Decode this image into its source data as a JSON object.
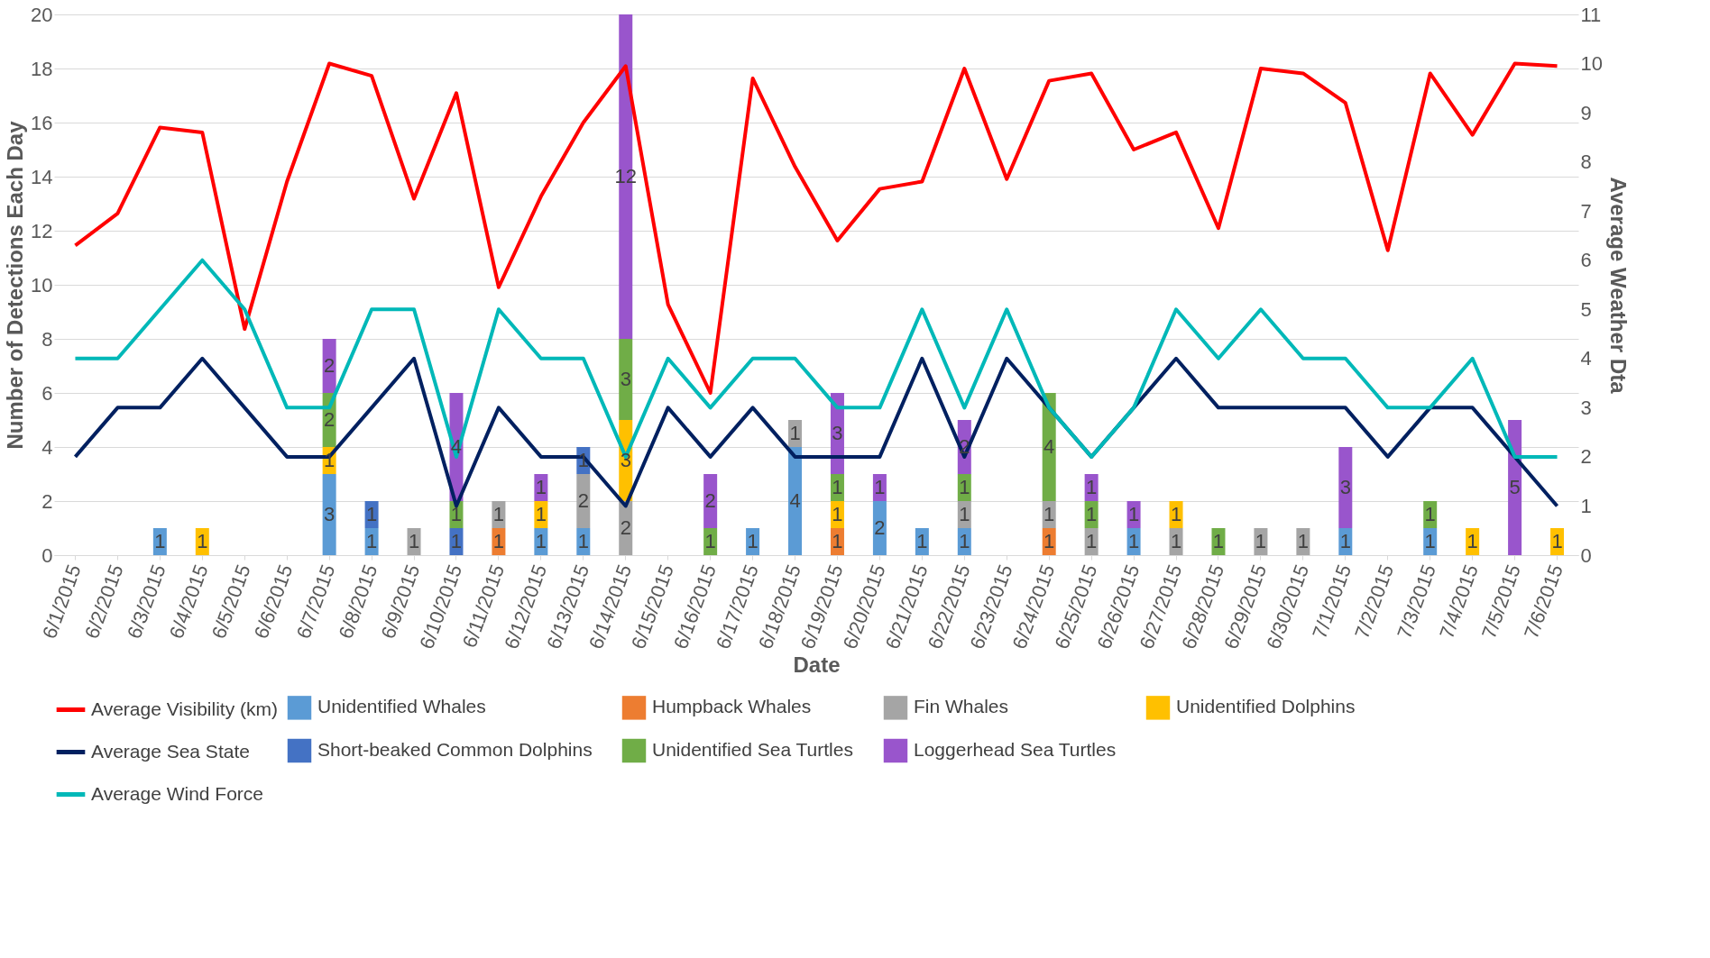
{
  "chart_data": {
    "type": "bar",
    "stacked": true,
    "grid": "y",
    "legend": "bottom",
    "xlabel": "Date",
    "ylabel": "Number of Detections Each Day",
    "y2label": "Average Weather Dta",
    "categories": [
      "6/1/2015",
      "6/2/2015",
      "6/3/2015",
      "6/4/2015",
      "6/5/2015",
      "6/6/2015",
      "6/7/2015",
      "6/8/2015",
      "6/9/2015",
      "6/10/2015",
      "6/11/2015",
      "6/12/2015",
      "6/13/2015",
      "6/14/2015",
      "6/15/2015",
      "6/16/2015",
      "6/17/2015",
      "6/18/2015",
      "6/19/2015",
      "6/20/2015",
      "6/21/2015",
      "6/22/2015",
      "6/23/2015",
      "6/24/2015",
      "6/25/2015",
      "6/26/2015",
      "6/27/2015",
      "6/28/2015",
      "6/29/2015",
      "6/30/2015",
      "7/1/2015",
      "7/2/2015",
      "7/3/2015",
      "7/4/2015",
      "7/5/2015",
      "7/6/2015"
    ],
    "ylim": [
      0,
      20
    ],
    "yticks": [
      0,
      2,
      4,
      6,
      8,
      10,
      12,
      14,
      16,
      18,
      20
    ],
    "y2lim": [
      0,
      11
    ],
    "y2ticks": [
      0,
      1,
      2,
      3,
      4,
      5,
      6,
      7,
      8,
      9,
      10,
      11
    ],
    "series": [
      {
        "name": "Unidentified Whales",
        "color": "#5b9bd5",
        "values": [
          null,
          null,
          1,
          null,
          null,
          null,
          3,
          1,
          null,
          null,
          null,
          1,
          1,
          null,
          null,
          null,
          1,
          4,
          null,
          2,
          1,
          1,
          null,
          null,
          null,
          1,
          null,
          null,
          null,
          null,
          1,
          null,
          1,
          null,
          null,
          null
        ],
        "value_labels": [
          null,
          null,
          "1",
          null,
          null,
          null,
          "3",
          "1",
          null,
          null,
          null,
          "1",
          "1",
          null,
          null,
          null,
          "1",
          "4",
          null,
          "2",
          "1",
          "1",
          null,
          null,
          null,
          "1",
          null,
          null,
          null,
          null,
          "1",
          null,
          "1",
          null,
          null,
          null
        ]
      },
      {
        "name": "Humpback Whales",
        "color": "#ed7d31",
        "values": [
          null,
          null,
          null,
          null,
          null,
          null,
          null,
          null,
          null,
          null,
          1,
          null,
          null,
          null,
          null,
          null,
          null,
          null,
          1,
          null,
          null,
          null,
          null,
          1,
          null,
          null,
          null,
          null,
          null,
          null,
          null,
          null,
          null,
          null,
          null,
          null
        ],
        "value_labels": [
          null,
          null,
          null,
          null,
          null,
          null,
          null,
          null,
          null,
          null,
          "1",
          null,
          null,
          null,
          null,
          null,
          null,
          null,
          "1",
          null,
          null,
          null,
          null,
          "1",
          null,
          null,
          null,
          null,
          null,
          null,
          null,
          null,
          null,
          null,
          null,
          null
        ]
      },
      {
        "name": "Fin Whales",
        "color": "#a5a5a5",
        "values": [
          null,
          null,
          null,
          null,
          null,
          null,
          null,
          null,
          1,
          null,
          1,
          null,
          2,
          2,
          null,
          null,
          null,
          1,
          null,
          null,
          null,
          1,
          null,
          1,
          1,
          null,
          1,
          null,
          1,
          1,
          null,
          null,
          null,
          null,
          null,
          null
        ],
        "value_labels": [
          null,
          null,
          null,
          null,
          null,
          null,
          null,
          null,
          "1",
          null,
          "1",
          null,
          "2",
          "2",
          null,
          null,
          null,
          "1",
          null,
          null,
          null,
          "1",
          null,
          "1",
          "1",
          null,
          "1",
          null,
          "1",
          "1",
          null,
          null,
          null,
          null,
          null,
          null
        ]
      },
      {
        "name": "Unidentified Dolphins",
        "color": "#ffc000",
        "values": [
          null,
          null,
          null,
          1,
          null,
          null,
          1,
          null,
          null,
          null,
          null,
          1,
          null,
          3,
          null,
          null,
          null,
          null,
          1,
          null,
          null,
          null,
          null,
          null,
          null,
          null,
          1,
          null,
          null,
          null,
          null,
          null,
          null,
          1,
          null,
          1
        ],
        "value_labels": [
          null,
          null,
          null,
          "1",
          null,
          null,
          "1",
          null,
          null,
          null,
          null,
          "1",
          null,
          "3",
          null,
          null,
          null,
          null,
          "1",
          null,
          null,
          null,
          null,
          null,
          null,
          null,
          "1",
          null,
          null,
          null,
          null,
          null,
          null,
          "1",
          null,
          "1"
        ]
      },
      {
        "name": "Short-beaked Common Dolphins",
        "color": "#4472c4",
        "values": [
          null,
          null,
          null,
          null,
          null,
          null,
          null,
          1,
          null,
          1,
          null,
          null,
          1,
          null,
          null,
          null,
          null,
          null,
          null,
          null,
          null,
          null,
          null,
          null,
          null,
          null,
          null,
          null,
          null,
          null,
          null,
          null,
          null,
          null,
          null,
          null
        ],
        "value_labels": [
          null,
          null,
          null,
          null,
          null,
          null,
          null,
          "1",
          null,
          "1",
          null,
          null,
          "1",
          null,
          null,
          null,
          null,
          null,
          null,
          null,
          null,
          null,
          null,
          null,
          null,
          null,
          null,
          null,
          null,
          null,
          null,
          null,
          null,
          null,
          null,
          null
        ]
      },
      {
        "name": "Unidentified Sea Turtles",
        "color": "#70ad47",
        "values": [
          null,
          null,
          null,
          null,
          null,
          null,
          2,
          null,
          null,
          1,
          null,
          null,
          null,
          3,
          null,
          1,
          null,
          null,
          1,
          null,
          null,
          1,
          null,
          4,
          1,
          null,
          null,
          1,
          null,
          null,
          null,
          null,
          1,
          null,
          null,
          null
        ],
        "value_labels": [
          null,
          null,
          null,
          null,
          null,
          null,
          "2",
          null,
          null,
          "1",
          null,
          null,
          null,
          "3",
          null,
          "1",
          null,
          null,
          "1",
          null,
          null,
          "1",
          null,
          "4",
          "1",
          null,
          null,
          "1",
          null,
          null,
          null,
          null,
          "1",
          null,
          null,
          null
        ]
      },
      {
        "name": "Loggerhead Sea Turtles",
        "color": "#9955cc",
        "values": [
          null,
          null,
          null,
          null,
          null,
          null,
          2,
          null,
          null,
          4,
          null,
          1,
          null,
          12,
          null,
          2,
          null,
          null,
          3,
          1,
          null,
          2,
          null,
          null,
          1,
          1,
          null,
          null,
          null,
          null,
          3,
          null,
          null,
          null,
          5,
          null
        ],
        "value_labels": [
          null,
          null,
          null,
          null,
          null,
          null,
          "2",
          null,
          null,
          "4",
          null,
          "1",
          null,
          "12",
          null,
          "2",
          null,
          null,
          "3",
          "1",
          null,
          "2",
          null,
          null,
          "1",
          "1",
          null,
          null,
          null,
          null,
          "3",
          null,
          null,
          null,
          "5",
          null
        ]
      },
      {
        "name": "Average Visibility (km)",
        "type": "line",
        "axis": "y2",
        "color": "#ff0000",
        "values": [
          6.3,
          6.95,
          8.7,
          8.6,
          4.6,
          7.6,
          10.0,
          9.75,
          7.25,
          9.4,
          5.45,
          7.3,
          8.8,
          9.95,
          5.1,
          3.3,
          9.7,
          7.9,
          6.4,
          7.45,
          7.6,
          9.9,
          7.65,
          9.65,
          9.8,
          8.25,
          8.6,
          6.65,
          9.9,
          9.8,
          9.2,
          6.2,
          9.8,
          8.55,
          10.0,
          9.95
        ]
      },
      {
        "name": "Average Sea State",
        "type": "line",
        "axis": "y2",
        "color": "#002060",
        "values": [
          2,
          3,
          3,
          4,
          3,
          2,
          2,
          3,
          4,
          1,
          3,
          2,
          2,
          1,
          3,
          2,
          3,
          2,
          2,
          2,
          4,
          2,
          4,
          3,
          2,
          3,
          4,
          3,
          3,
          3,
          3,
          2,
          3,
          3,
          2,
          1
        ]
      },
      {
        "name": "Average Wind Force",
        "type": "line",
        "axis": "y2",
        "color": "#00b8b8",
        "values": [
          4,
          4,
          5,
          6,
          5,
          3,
          3,
          5,
          5,
          2,
          5,
          4,
          4,
          2,
          4,
          3,
          4,
          4,
          3,
          3,
          5,
          3,
          5,
          3,
          2,
          3,
          5,
          4,
          5,
          4,
          4,
          3,
          3,
          4,
          2,
          2
        ]
      }
    ]
  }
}
